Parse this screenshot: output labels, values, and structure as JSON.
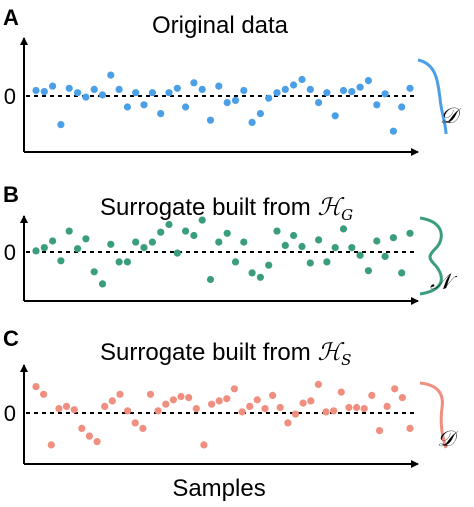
{
  "chart_data": [
    {
      "type": "scatter",
      "panel_label": "A",
      "title": "Original data",
      "title_math": "",
      "title_sub": "",
      "ytick": "0",
      "dist_label": "𝒟",
      "color": "#4b9fe6",
      "values": [
        0.25,
        0.2,
        0.45,
        -1.3,
        0.35,
        0.15,
        -0.05,
        0.3,
        0.05,
        0.95,
        0.3,
        -0.5,
        0.15,
        -0.4,
        0.15,
        -0.8,
        0.15,
        0.35,
        -0.5,
        0.6,
        0.3,
        -1.1,
        0.45,
        -0.3,
        -0.2,
        0.25,
        -1.2,
        -0.8,
        -0.1,
        0.15,
        0.3,
        0.5,
        0.75,
        0.3,
        -0.3,
        0.15,
        -0.9,
        0.25,
        0.2,
        0.4,
        0.7,
        -0.4,
        0.1,
        -1.6,
        -0.5,
        0.35
      ]
    },
    {
      "type": "scatter",
      "panel_label": "B",
      "title": "Surrogate built from ",
      "title_math": "ℋ",
      "title_sub": "G",
      "ytick": "0",
      "dist_label": "𝒩",
      "color": "#3a9e7e",
      "values": [
        0.05,
        0.2,
        0.5,
        -0.4,
        0.95,
        0.15,
        0.6,
        -0.9,
        -1.45,
        0.35,
        -0.45,
        -0.45,
        0.45,
        0.2,
        0.45,
        0.9,
        1.25,
        -0.05,
        0.95,
        0.75,
        1.45,
        -1.25,
        0.45,
        0.85,
        -0.45,
        0.45,
        -0.95,
        -1.15,
        -0.6,
        0.95,
        0.3,
        0.75,
        0.25,
        -0.5,
        0.55,
        -0.45,
        0.2,
        1.05,
        0.2,
        -0.15,
        -0.85,
        0.5,
        -0.2,
        0.65,
        -0.95,
        0.85
      ]
    },
    {
      "type": "scatter",
      "panel_label": "C",
      "title": "Surrogate built from ",
      "title_math": "ℋ",
      "title_sub": "S",
      "ytick": "0",
      "dist_label": "𝒟",
      "color": "#f08e80",
      "values": [
        1.2,
        0.85,
        -1.45,
        0.2,
        0.3,
        0.15,
        -0.7,
        -1.05,
        -1.3,
        0.3,
        0.55,
        0.85,
        0.1,
        -0.45,
        -0.7,
        0.85,
        0.1,
        0.4,
        0.6,
        0.75,
        0.7,
        0.2,
        -1.45,
        0.4,
        0.55,
        0.65,
        1.1,
        0.05,
        0.3,
        0.6,
        0.2,
        0.8,
        0.25,
        -0.45,
        -0.05,
        0.45,
        0.55,
        1.3,
        0.05,
        0.1,
        0.95,
        0.25,
        0.25,
        0.2,
        0.8,
        -0.8,
        0.3,
        1.1,
        0.7,
        -0.7
      ]
    }
  ],
  "xlabel": "Samples"
}
